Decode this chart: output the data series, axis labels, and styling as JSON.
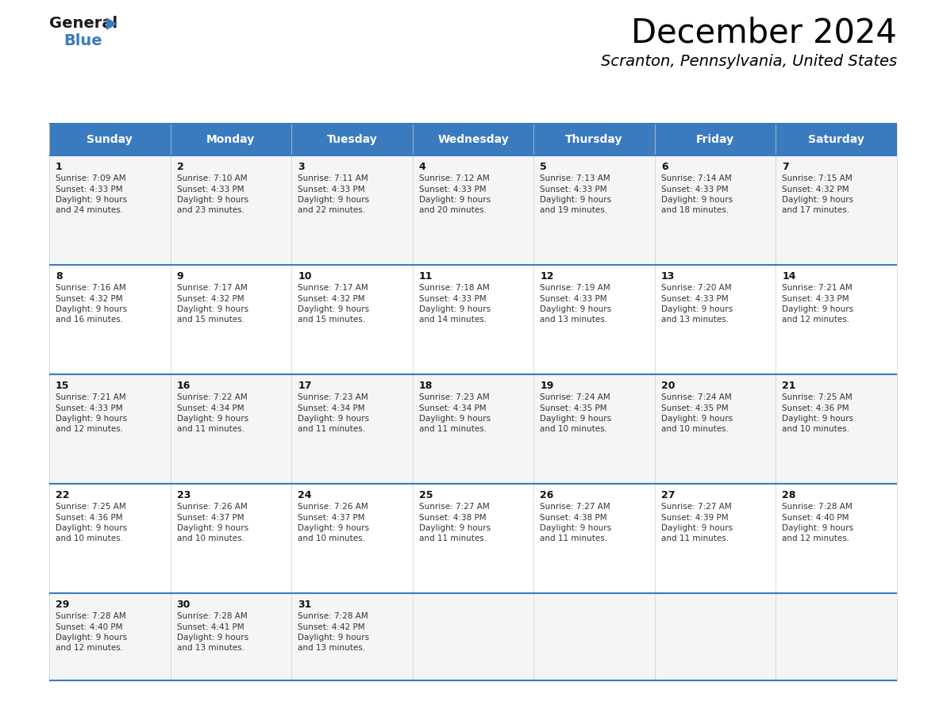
{
  "title": "December 2024",
  "subtitle": "Scranton, Pennsylvania, United States",
  "days_of_week": [
    "Sunday",
    "Monday",
    "Tuesday",
    "Wednesday",
    "Thursday",
    "Friday",
    "Saturday"
  ],
  "header_bg": "#3a7bbf",
  "header_text": "#ffffff",
  "row_bg_even": "#f5f5f5",
  "row_bg_odd": "#ffffff",
  "row_bg_last": "#f5f5f5",
  "border_color": "#3a7bbf",
  "text_color": "#333333",
  "day_number_color": "#111111",
  "calendar_data": [
    {
      "day": 1,
      "col": 0,
      "row": 0,
      "sunrise": "7:09 AM",
      "sunset": "4:33 PM",
      "daylight_min": "24"
    },
    {
      "day": 2,
      "col": 1,
      "row": 0,
      "sunrise": "7:10 AM",
      "sunset": "4:33 PM",
      "daylight_min": "23"
    },
    {
      "day": 3,
      "col": 2,
      "row": 0,
      "sunrise": "7:11 AM",
      "sunset": "4:33 PM",
      "daylight_min": "22"
    },
    {
      "day": 4,
      "col": 3,
      "row": 0,
      "sunrise": "7:12 AM",
      "sunset": "4:33 PM",
      "daylight_min": "20"
    },
    {
      "day": 5,
      "col": 4,
      "row": 0,
      "sunrise": "7:13 AM",
      "sunset": "4:33 PM",
      "daylight_min": "19"
    },
    {
      "day": 6,
      "col": 5,
      "row": 0,
      "sunrise": "7:14 AM",
      "sunset": "4:33 PM",
      "daylight_min": "18"
    },
    {
      "day": 7,
      "col": 6,
      "row": 0,
      "sunrise": "7:15 AM",
      "sunset": "4:32 PM",
      "daylight_min": "17"
    },
    {
      "day": 8,
      "col": 0,
      "row": 1,
      "sunrise": "7:16 AM",
      "sunset": "4:32 PM",
      "daylight_min": "16"
    },
    {
      "day": 9,
      "col": 1,
      "row": 1,
      "sunrise": "7:17 AM",
      "sunset": "4:32 PM",
      "daylight_min": "15"
    },
    {
      "day": 10,
      "col": 2,
      "row": 1,
      "sunrise": "7:17 AM",
      "sunset": "4:32 PM",
      "daylight_min": "15"
    },
    {
      "day": 11,
      "col": 3,
      "row": 1,
      "sunrise": "7:18 AM",
      "sunset": "4:33 PM",
      "daylight_min": "14"
    },
    {
      "day": 12,
      "col": 4,
      "row": 1,
      "sunrise": "7:19 AM",
      "sunset": "4:33 PM",
      "daylight_min": "13"
    },
    {
      "day": 13,
      "col": 5,
      "row": 1,
      "sunrise": "7:20 AM",
      "sunset": "4:33 PM",
      "daylight_min": "13"
    },
    {
      "day": 14,
      "col": 6,
      "row": 1,
      "sunrise": "7:21 AM",
      "sunset": "4:33 PM",
      "daylight_min": "12"
    },
    {
      "day": 15,
      "col": 0,
      "row": 2,
      "sunrise": "7:21 AM",
      "sunset": "4:33 PM",
      "daylight_min": "12"
    },
    {
      "day": 16,
      "col": 1,
      "row": 2,
      "sunrise": "7:22 AM",
      "sunset": "4:34 PM",
      "daylight_min": "11"
    },
    {
      "day": 17,
      "col": 2,
      "row": 2,
      "sunrise": "7:23 AM",
      "sunset": "4:34 PM",
      "daylight_min": "11"
    },
    {
      "day": 18,
      "col": 3,
      "row": 2,
      "sunrise": "7:23 AM",
      "sunset": "4:34 PM",
      "daylight_min": "11"
    },
    {
      "day": 19,
      "col": 4,
      "row": 2,
      "sunrise": "7:24 AM",
      "sunset": "4:35 PM",
      "daylight_min": "10"
    },
    {
      "day": 20,
      "col": 5,
      "row": 2,
      "sunrise": "7:24 AM",
      "sunset": "4:35 PM",
      "daylight_min": "10"
    },
    {
      "day": 21,
      "col": 6,
      "row": 2,
      "sunrise": "7:25 AM",
      "sunset": "4:36 PM",
      "daylight_min": "10"
    },
    {
      "day": 22,
      "col": 0,
      "row": 3,
      "sunrise": "7:25 AM",
      "sunset": "4:36 PM",
      "daylight_min": "10"
    },
    {
      "day": 23,
      "col": 1,
      "row": 3,
      "sunrise": "7:26 AM",
      "sunset": "4:37 PM",
      "daylight_min": "10"
    },
    {
      "day": 24,
      "col": 2,
      "row": 3,
      "sunrise": "7:26 AM",
      "sunset": "4:37 PM",
      "daylight_min": "10"
    },
    {
      "day": 25,
      "col": 3,
      "row": 3,
      "sunrise": "7:27 AM",
      "sunset": "4:38 PM",
      "daylight_min": "11"
    },
    {
      "day": 26,
      "col": 4,
      "row": 3,
      "sunrise": "7:27 AM",
      "sunset": "4:38 PM",
      "daylight_min": "11"
    },
    {
      "day": 27,
      "col": 5,
      "row": 3,
      "sunrise": "7:27 AM",
      "sunset": "4:39 PM",
      "daylight_min": "11"
    },
    {
      "day": 28,
      "col": 6,
      "row": 3,
      "sunrise": "7:28 AM",
      "sunset": "4:40 PM",
      "daylight_min": "12"
    },
    {
      "day": 29,
      "col": 0,
      "row": 4,
      "sunrise": "7:28 AM",
      "sunset": "4:40 PM",
      "daylight_min": "12"
    },
    {
      "day": 30,
      "col": 1,
      "row": 4,
      "sunrise": "7:28 AM",
      "sunset": "4:41 PM",
      "daylight_min": "13"
    },
    {
      "day": 31,
      "col": 2,
      "row": 4,
      "sunrise": "7:28 AM",
      "sunset": "4:42 PM",
      "daylight_min": "13"
    }
  ],
  "num_rows": 5,
  "num_cols": 7
}
